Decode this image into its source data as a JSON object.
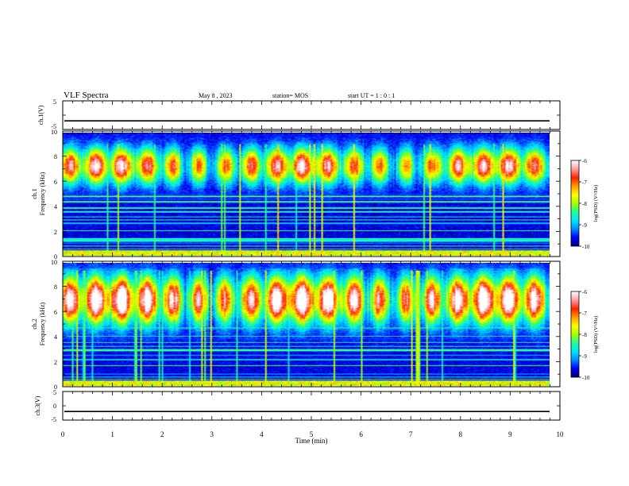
{
  "header": {
    "title": "VLF Spectra",
    "date": "May 8 , 2023",
    "station": "station= MOS",
    "start": "start  UT =   1 : 0  : 1"
  },
  "colors": {
    "spectrum": [
      "#00007a",
      "#0000ff",
      "#0090ff",
      "#00e8ff",
      "#20ff90",
      "#a8ff00",
      "#ffff00",
      "#ffa000",
      "#ff2000",
      "#ff9aa0",
      "#ffffff"
    ]
  },
  "chart_data": [
    {
      "type": "line",
      "name": "ch1-waveform",
      "ylabel": "ch.1(V)",
      "ylim": [
        -5,
        5
      ],
      "yticks": [
        "5",
        "-5"
      ],
      "xlim": [
        0,
        10
      ],
      "level": -2
    },
    {
      "type": "heatmap",
      "name": "ch1-spectrogram",
      "ylabel_line1": "ch.1",
      "ylabel_line2": "Frequency (kHz)",
      "ylim": [
        0,
        10
      ],
      "yticks": [
        "0",
        "2",
        "4",
        "6",
        "8",
        "10"
      ],
      "band_center_khz": 7.3,
      "band_halfwidth_khz": 1.8,
      "peak_log_psd": -7.0
    },
    {
      "type": "heatmap",
      "name": "ch2-spectrogram",
      "ylabel_line1": "ch.2",
      "ylabel_line2": "Frequency (kHz)",
      "ylim": [
        0,
        10
      ],
      "yticks": [
        "0",
        "2",
        "4",
        "6",
        "8",
        "10"
      ],
      "band_center_khz": 7.0,
      "band_halfwidth_khz": 2.4,
      "peak_log_psd": -6.4
    },
    {
      "type": "line",
      "name": "ch3-waveform",
      "ylabel": "ch.3(V)",
      "ylim": [
        -5,
        5
      ],
      "yticks": [
        "5",
        "0",
        "-5"
      ],
      "xlim": [
        0,
        10
      ],
      "level": -2
    }
  ],
  "xaxis": {
    "label": "Time  (min)",
    "ticks": [
      "0",
      "1",
      "2",
      "3",
      "4",
      "5",
      "6",
      "7",
      "8",
      "9",
      "10"
    ]
  },
  "colorbars": [
    {
      "label": "log(PSD) (V²/Hz)",
      "ticks": [
        "-6",
        "-7",
        "-8",
        "-9",
        "-10"
      ]
    },
    {
      "label": "log(PSD) (V²/Hz)",
      "ticks": [
        "-6",
        "-7",
        "-8",
        "-9",
        "-10"
      ]
    }
  ]
}
